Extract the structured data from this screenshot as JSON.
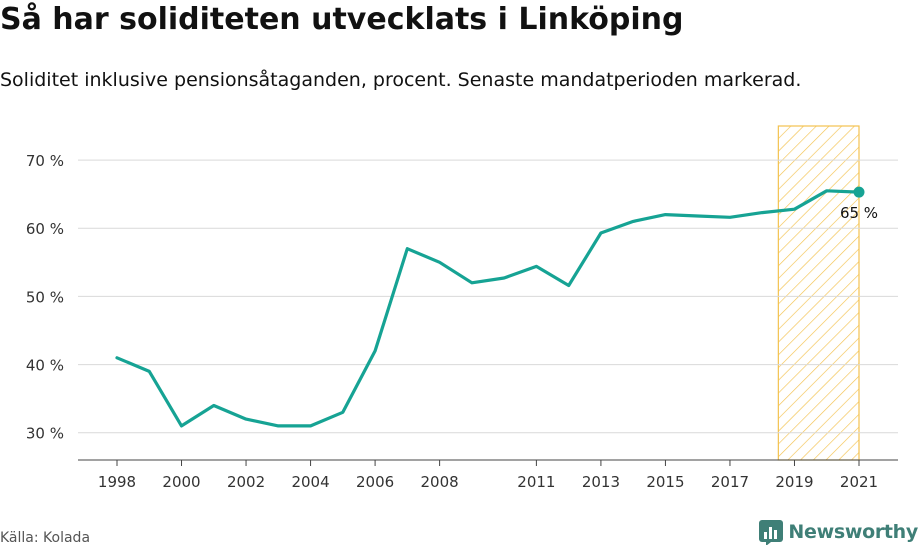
{
  "title": "Så har soliditeten utvecklats i Linköping",
  "subtitle": "Soliditet inklusive pensionsåtaganden, procent. Senaste mandatperioden markerad.",
  "source": "Källa: Kolada",
  "brand": {
    "name": "Newsworthy",
    "icon": "newsworthy-logo-icon",
    "color": "#3f7f77"
  },
  "chart_data": {
    "type": "line",
    "x": [
      1998,
      1999,
      2000,
      2001,
      2002,
      2003,
      2004,
      2005,
      2006,
      2007,
      2008,
      2009,
      2010,
      2011,
      2012,
      2013,
      2014,
      2015,
      2016,
      2017,
      2018,
      2019,
      2020,
      2021
    ],
    "series": [
      {
        "values": [
          41,
          39,
          31,
          34,
          32,
          31,
          31,
          33,
          42,
          57,
          55,
          52,
          52.7,
          54.4,
          51.6,
          59.3,
          61,
          62,
          61.8,
          61.6,
          62.3,
          62.8,
          65.5,
          65.3
        ],
        "color": "#16a394"
      }
    ],
    "x_tick_labels": [
      "1998",
      "2000",
      "2002",
      "2004",
      "2006",
      "2008",
      "2011",
      "2013",
      "2015",
      "2017",
      "2019",
      "2021"
    ],
    "y_ticks": [
      30,
      40,
      50,
      60,
      70
    ],
    "y_tick_labels": [
      "30 %",
      "40 %",
      "50 %",
      "60 %",
      "70 %"
    ],
    "ylim": [
      26,
      75
    ],
    "xlim": [
      1997,
      2022
    ],
    "highlight": {
      "from": 2018.5,
      "to": 2021,
      "color": "#f3c24f"
    },
    "end_label": "65 %",
    "grid": true,
    "legend": "none"
  }
}
